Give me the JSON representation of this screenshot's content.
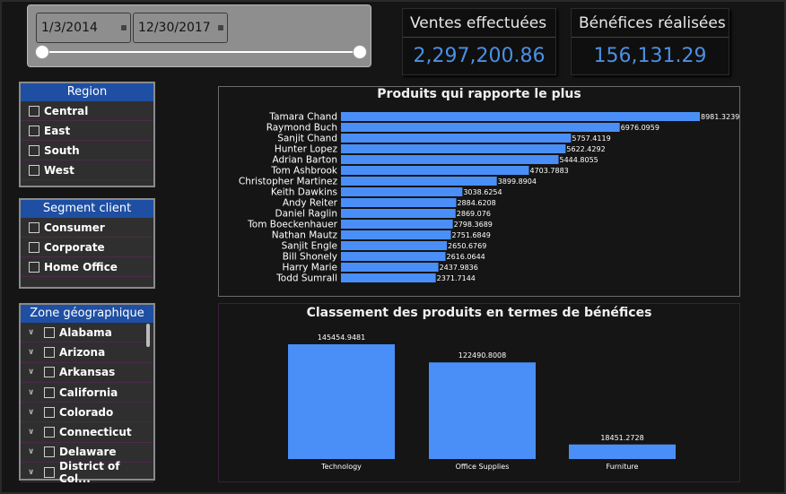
{
  "date_slicer": {
    "start_date": "1/3/2014",
    "end_date": "12/30/2017"
  },
  "kpis": {
    "sales": {
      "title": "Ventes effectuées",
      "value": "2,297,200.86"
    },
    "profit": {
      "title": "Bénéfices  réalisées",
      "value": "156,131.29"
    }
  },
  "region_slicer": {
    "title": "Region",
    "items": [
      "Central",
      "East",
      "South",
      "West"
    ]
  },
  "segment_slicer": {
    "title": "Segment client",
    "items": [
      "Consumer",
      "Corporate",
      "Home Office"
    ]
  },
  "geo_slicer": {
    "title": "Zone géographique",
    "items": [
      "Alabama",
      "Arizona",
      "Arkansas",
      "California",
      "Colorado",
      "Connecticut",
      "Delaware",
      "District of Col..."
    ]
  },
  "colors": {
    "bar": "#4a8ff7",
    "slicer_header": "#1f4fa3",
    "kpi_value": "#4a90e2"
  },
  "chart_data": [
    {
      "type": "bar",
      "title": "Produits qui rapporte le plus",
      "orientation": "horizontal",
      "categories": [
        "Tamara Chand",
        "Raymond Buch",
        "Sanjit Chand",
        "Hunter Lopez",
        "Adrian Barton",
        "Tom Ashbrook",
        "Christopher Martinez",
        "Keith Dawkins",
        "Andy Reiter",
        "Daniel Raglin",
        "Tom Boeckenhauer",
        "Nathan Mautz",
        "Sanjit Engle",
        "Bill Shonely",
        "Harry Marie",
        "Todd Sumrall"
      ],
      "values": [
        8981.3239,
        6976.0959,
        5757.4119,
        5622.4292,
        5444.8055,
        4703.7883,
        3899.8904,
        3038.6254,
        2884.6208,
        2869.076,
        2798.3689,
        2751.6849,
        2650.6769,
        2616.0644,
        2437.9836,
        2371.7144
      ],
      "labels": [
        "8981.3239",
        "6976.0959",
        "5757.4119",
        "5622.4292",
        "5444.8055",
        "4703.7883",
        "3899.8904",
        "3038.6254",
        "2884.6208",
        "2869.076",
        "2798.3689",
        "2751.6849",
        "2650.6769",
        "2616.0644",
        "2437.9836",
        "2371.7144"
      ]
    },
    {
      "type": "bar",
      "title": "Classement des produits en termes de bénéfices",
      "orientation": "vertical",
      "categories": [
        "Technology",
        "Office Supplies",
        "Furniture"
      ],
      "values": [
        145454.9481,
        122490.8008,
        18451.2728
      ],
      "labels": [
        "145454.9481",
        "122490.8008",
        "18451.2728"
      ]
    }
  ]
}
